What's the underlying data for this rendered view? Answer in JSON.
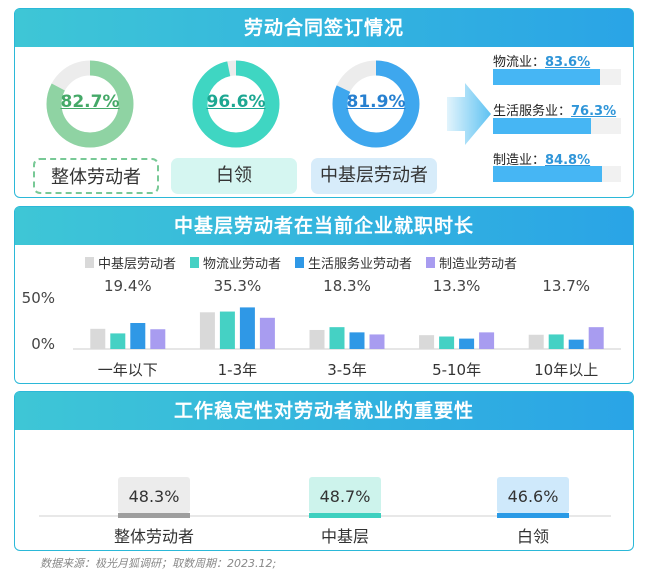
{
  "section1": {
    "title": "劳动合同签订情况",
    "donuts": [
      {
        "label": "整体劳动者",
        "value": 82.7,
        "value_text": "82.7%",
        "color": "#8fd3a3",
        "text_color": "#45a968"
      },
      {
        "label": "白领",
        "value": 96.6,
        "value_text": "96.6%",
        "color": "#3fd6c2",
        "text_color": "#1ca792"
      },
      {
        "label": "中基层劳动者",
        "value": 81.9,
        "value_text": "81.9%",
        "color": "#3ea7ee",
        "text_color": "#2780d0"
      }
    ],
    "industries": [
      {
        "name": "物流业：",
        "value": 83.6,
        "value_text": "83.6%"
      },
      {
        "name": "生活服务业：",
        "value": 76.3,
        "value_text": "76.3%"
      },
      {
        "name": "制造业：",
        "value": 84.8,
        "value_text": "84.8%"
      }
    ]
  },
  "section2": {
    "title": "中基层劳动者在当前企业就职时长",
    "chart_data": {
      "type": "bar",
      "categories": [
        "一年以下",
        "1-3年",
        "3-5年",
        "5-10年",
        "10年以上"
      ],
      "series": [
        {
          "name": "中基层劳动者",
          "color": "#d9d9d9",
          "values": [
            19.4,
            35.3,
            18.3,
            13.3,
            13.7
          ]
        },
        {
          "name": "物流业劳动者",
          "color": "#45d1c4",
          "values": [
            15,
            36,
            21,
            12,
            14
          ]
        },
        {
          "name": "生活服务业劳动者",
          "color": "#2f98e6",
          "values": [
            25,
            40,
            16,
            10,
            9
          ]
        },
        {
          "name": "制造业劳动者",
          "color": "#a89cf0",
          "values": [
            19,
            30,
            14,
            16,
            21
          ]
        }
      ],
      "data_labels": [
        "19.4%",
        "35.3%",
        "18.3%",
        "13.3%",
        "13.7%"
      ],
      "ytick_labels": [
        "50%",
        "0%"
      ],
      "ylim": [
        0,
        50
      ]
    }
  },
  "section3": {
    "title": "工作稳定性对劳动者就业的重要性",
    "items": [
      {
        "label": "整体劳动者",
        "value_text": "48.3%",
        "value": 48.3,
        "bg": "#ececec",
        "bar": "#9e9e9e"
      },
      {
        "label": "中基层",
        "value_text": "48.7%",
        "value": 48.7,
        "bg": "#cdf3ec",
        "bar": "#3ed0bf"
      },
      {
        "label": "白领",
        "value_text": "46.6%",
        "value": 46.6,
        "bg": "#cfe9fb",
        "bar": "#2a9ae6"
      }
    ]
  },
  "footer": "数据来源：极光月狐调研；取数周期：2023.12;"
}
